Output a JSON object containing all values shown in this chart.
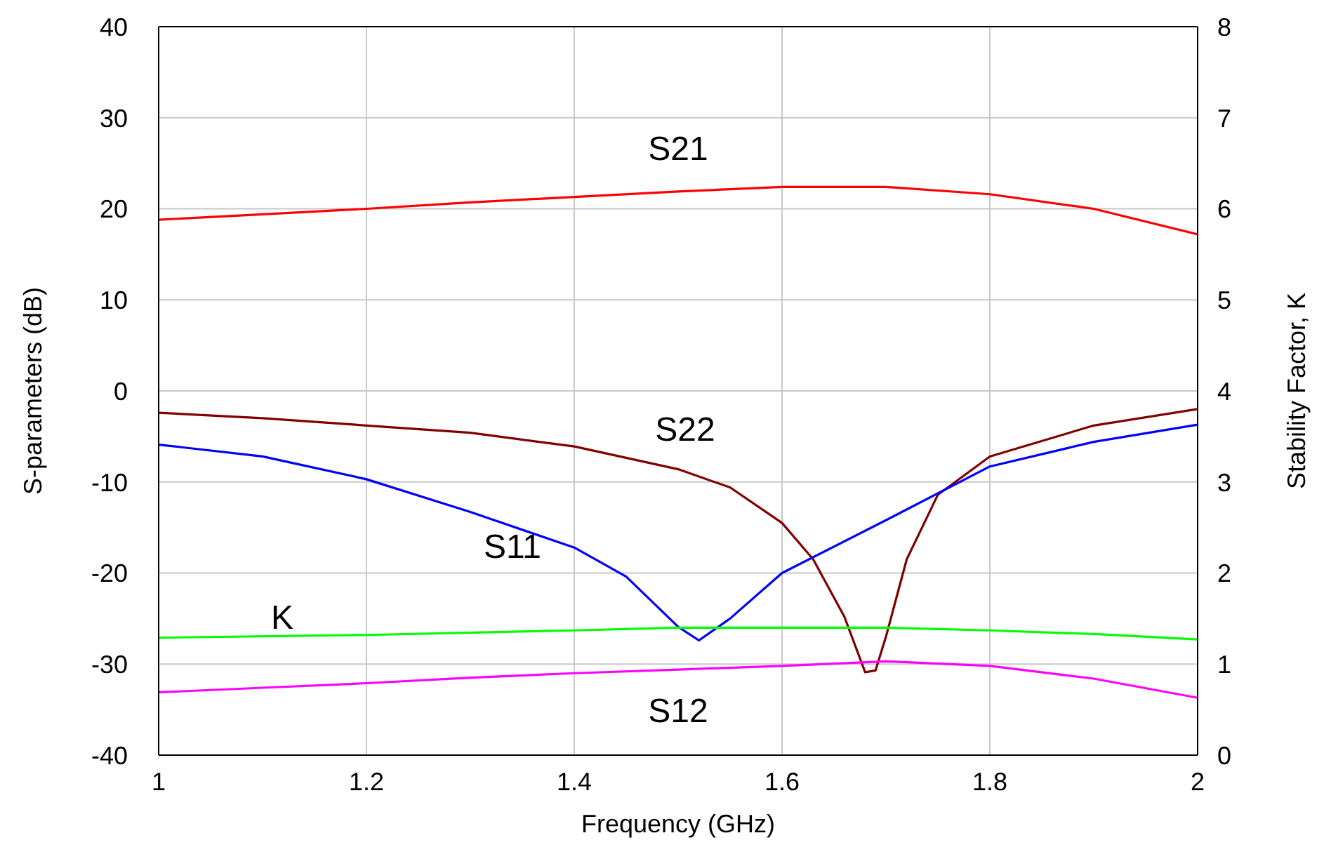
{
  "chart_data": {
    "type": "line",
    "xlabel": "Frequency (GHz)",
    "ylabel": "S-parameters (dB)",
    "y2label": "Stability Factor, K",
    "xlim": [
      1,
      2
    ],
    "xticks": [
      1,
      1.2,
      1.4,
      1.6,
      1.8,
      2
    ],
    "ylim": [
      -40,
      40
    ],
    "yticks": [
      -40,
      -30,
      -20,
      -10,
      0,
      10,
      20,
      30,
      40
    ],
    "y2lim": [
      0,
      8
    ],
    "y2ticks": [
      0,
      1,
      2,
      3,
      4,
      5,
      6,
      7,
      8
    ],
    "grid": true,
    "legend": false,
    "marker": "none",
    "line_style": "solid",
    "series": [
      {
        "name": "S21",
        "color": "#ff0000",
        "x": [
          1,
          1.1,
          1.2,
          1.3,
          1.4,
          1.5,
          1.6,
          1.7,
          1.8,
          1.9,
          2
        ],
        "values": [
          18.8,
          19.4,
          20,
          20.7,
          21.3,
          21.9,
          22.4,
          22.4,
          21.6,
          20,
          17.2
        ]
      },
      {
        "name": "S22",
        "color": "#800000",
        "x": [
          1,
          1.1,
          1.2,
          1.3,
          1.4,
          1.5,
          1.55,
          1.6,
          1.63,
          1.66,
          1.68,
          1.69,
          1.7,
          1.72,
          1.75,
          1.8,
          1.9,
          2
        ],
        "values": [
          -2.4,
          -3,
          -3.8,
          -4.6,
          -6.1,
          -8.6,
          -10.6,
          -14.5,
          -18.5,
          -24.8,
          -30.9,
          -30.7,
          -27,
          -18.5,
          -11.4,
          -7.2,
          -3.8,
          -2
        ]
      },
      {
        "name": "S11",
        "color": "#0000ff",
        "x": [
          1,
          1.1,
          1.2,
          1.3,
          1.4,
          1.45,
          1.5,
          1.52,
          1.55,
          1.6,
          1.7,
          1.8,
          1.9,
          2
        ],
        "values": [
          -5.9,
          -7.2,
          -9.7,
          -13.3,
          -17.2,
          -20.4,
          -25.9,
          -27.4,
          -25,
          -20,
          -14.2,
          -8.3,
          -5.6,
          -3.7
        ]
      },
      {
        "name": "K",
        "color": "#00ff00",
        "axis": "y2",
        "x": [
          1,
          1.2,
          1.4,
          1.5,
          1.6,
          1.7,
          1.8,
          1.9,
          2
        ],
        "values": [
          1.29,
          1.32,
          1.37,
          1.4,
          1.4,
          1.4,
          1.37,
          1.33,
          1.27
        ]
      },
      {
        "name": "S12",
        "color": "#ff00ff",
        "x": [
          1,
          1.1,
          1.2,
          1.3,
          1.4,
          1.5,
          1.6,
          1.7,
          1.8,
          1.9,
          2
        ],
        "values": [
          -33.1,
          -32.6,
          -32.1,
          -31.5,
          -31,
          -30.6,
          -30.2,
          -29.7,
          -30.2,
          -31.6,
          -33.7
        ]
      }
    ]
  }
}
